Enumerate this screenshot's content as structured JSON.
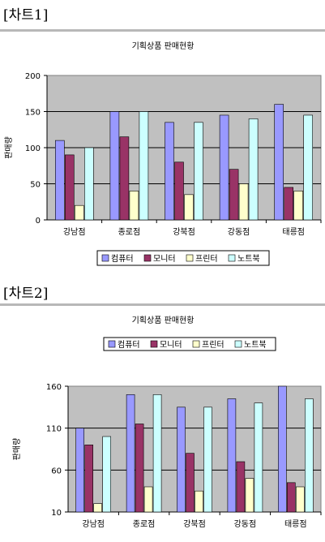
{
  "sections": [
    {
      "label": "[차트1]"
    },
    {
      "label": "[차트2]"
    }
  ],
  "chart_data": [
    {
      "type": "bar",
      "title": "기획상품 판매현황",
      "xlabel": "",
      "ylabel": "판매량",
      "categories": [
        "강남점",
        "종로점",
        "강북점",
        "강동점",
        "태릉점"
      ],
      "ylim": [
        0,
        200
      ],
      "yticks": [
        0,
        50,
        100,
        150,
        200
      ],
      "grid": true,
      "legend_position": "bottom",
      "series": [
        {
          "name": "컴퓨터",
          "color": "#9999ff",
          "values": [
            110,
            150,
            135,
            145,
            160
          ]
        },
        {
          "name": "모니터",
          "color": "#993366",
          "values": [
            90,
            115,
            80,
            70,
            45
          ]
        },
        {
          "name": "프린터",
          "color": "#ffffcc",
          "values": [
            20,
            40,
            35,
            50,
            40
          ]
        },
        {
          "name": "노트북",
          "color": "#ccffff",
          "values": [
            100,
            150,
            135,
            140,
            145
          ]
        }
      ]
    },
    {
      "type": "bar",
      "title": "기획상품 판매현황",
      "xlabel": "",
      "ylabel": "판매량",
      "categories": [
        "강남점",
        "종로점",
        "강북점",
        "강동점",
        "태릉점"
      ],
      "ylim": [
        10,
        160
      ],
      "yticks": [
        10,
        60,
        110,
        160
      ],
      "grid": true,
      "legend_position": "top",
      "series": [
        {
          "name": "컴퓨터",
          "color": "#9999ff",
          "values": [
            110,
            150,
            135,
            145,
            160
          ]
        },
        {
          "name": "모니터",
          "color": "#993366",
          "values": [
            90,
            115,
            80,
            70,
            45
          ]
        },
        {
          "name": "프린터",
          "color": "#ffffcc",
          "values": [
            20,
            40,
            35,
            50,
            40
          ]
        },
        {
          "name": "노트북",
          "color": "#ccffff",
          "values": [
            100,
            150,
            135,
            140,
            145
          ]
        }
      ]
    }
  ]
}
